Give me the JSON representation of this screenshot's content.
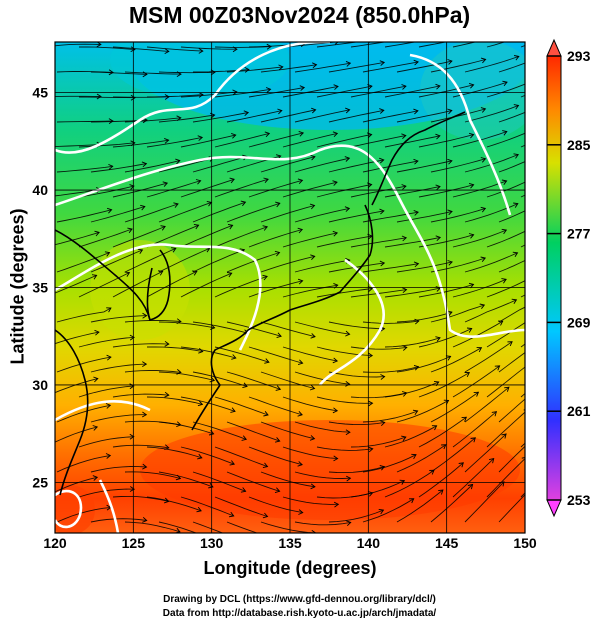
{
  "title": "MSM 00Z03Nov2024 (850.0hPa)",
  "map": {
    "xlabel": "Longitude (degrees)",
    "ylabel": "Latitude  (degrees)",
    "lon_range": [
      120,
      150
    ],
    "lat_range": [
      22.4,
      47.6
    ],
    "lon_ticks": [
      120,
      125,
      130,
      135,
      140,
      145,
      150
    ],
    "lat_ticks": [
      25,
      30,
      35,
      40,
      45
    ],
    "grid": true,
    "field": "temperature (K)",
    "overlay": "streamlines",
    "colormap_stops": [
      "#e040e0",
      "#3030ff",
      "#00c8ff",
      "#00d060",
      "#d8e000",
      "#ff8800",
      "#ff2800"
    ]
  },
  "colorbar": {
    "ticks": [
      293,
      285,
      277,
      269,
      261,
      253
    ],
    "range": [
      253,
      293
    ]
  },
  "credits": {
    "line1": "Drawing by DCL (https://www.gfd-dennou.org/library/dcl/)",
    "line2": "Data from http://database.rish.kyoto-u.ac.jp/arch/jmadata/"
  }
}
